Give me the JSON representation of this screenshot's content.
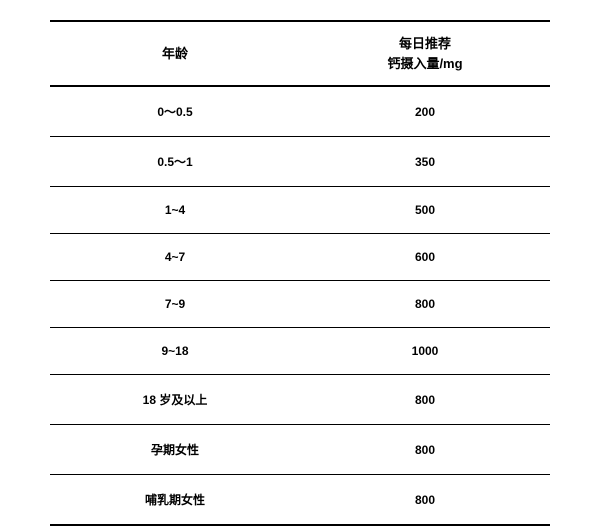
{
  "table": {
    "columns": [
      "年龄",
      "每日推荐\n钙摄入量/mg"
    ],
    "rows": [
      [
        "0～0.5",
        "200"
      ],
      [
        "0.5～1",
        "350"
      ],
      [
        "1~4",
        "500"
      ],
      [
        "4~7",
        "600"
      ],
      [
        "7~9",
        "800"
      ],
      [
        "9~18",
        "1000"
      ],
      [
        "18 岁及以上",
        "800"
      ],
      [
        "孕期女性",
        "800"
      ],
      [
        "哺乳期女性",
        "800"
      ]
    ],
    "styling": {
      "background_color": "#ffffff",
      "border_color": "#000000",
      "header_border_width": 2,
      "row_border_width": 1,
      "header_font_size": 13,
      "data_font_size": 12,
      "font_weight": "bold",
      "text_color": "#000000",
      "column_widths": [
        "50%",
        "50%"
      ],
      "alignment": "center"
    }
  }
}
